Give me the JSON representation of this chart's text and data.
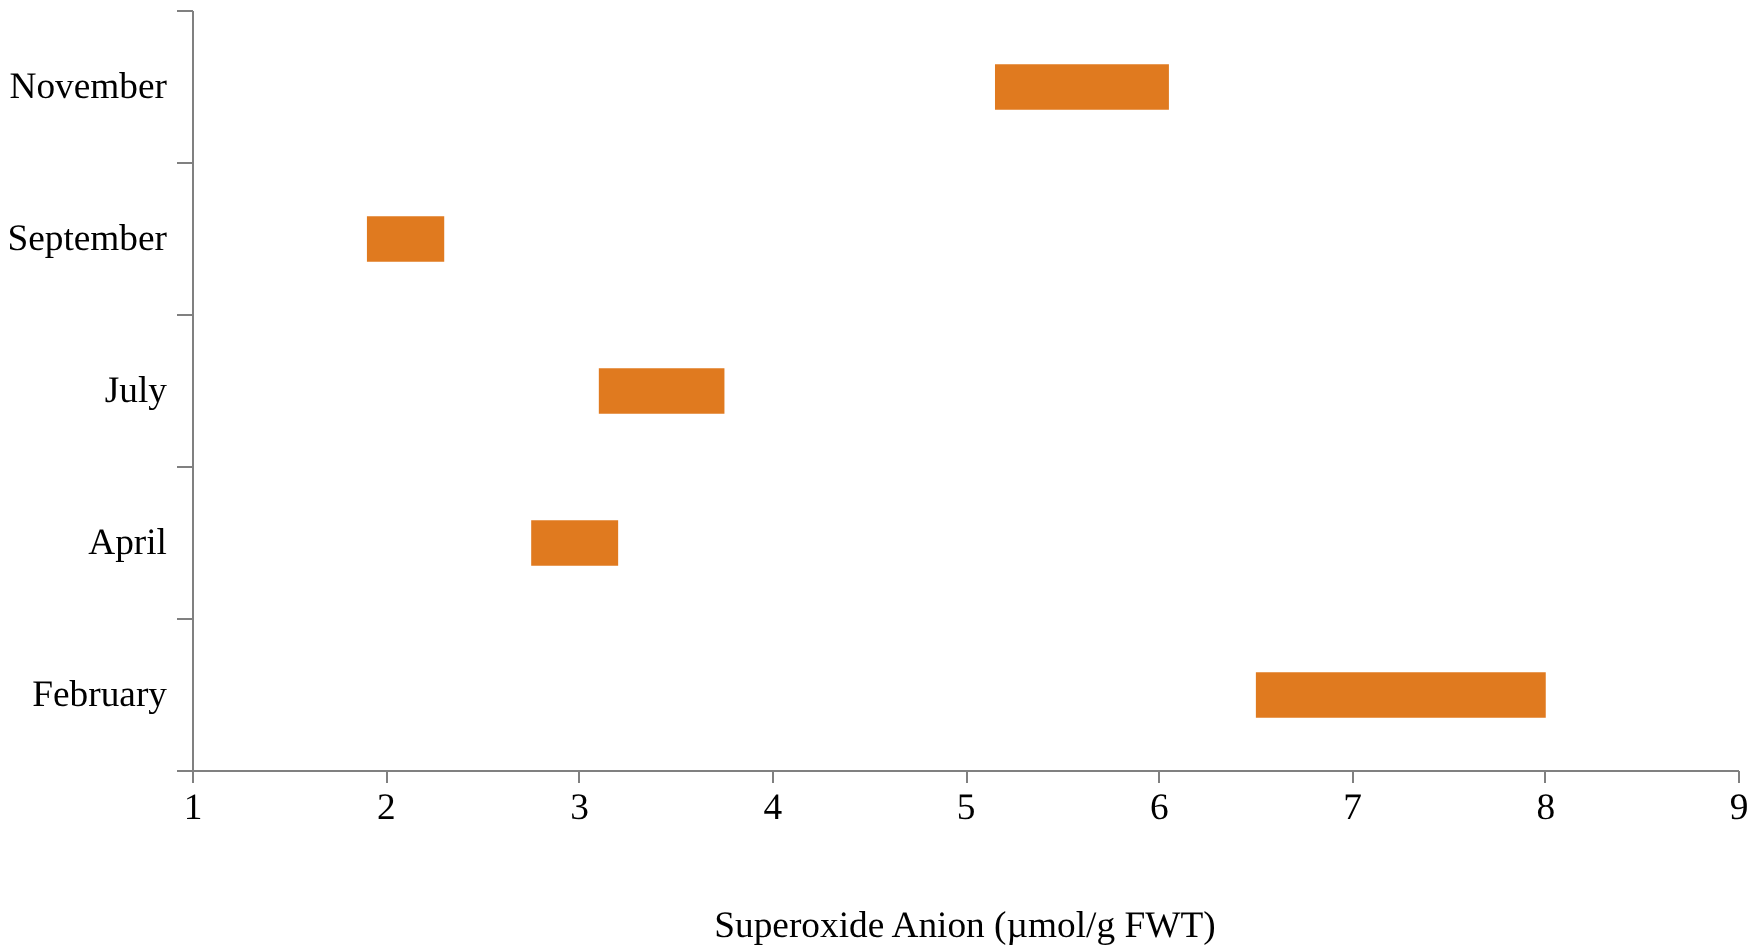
{
  "chart_data": {
    "type": "bar",
    "orientation": "horizontal",
    "xlabel": "Superoxide Anion (µmol/g FWT)",
    "categories": [
      "November",
      "September",
      "July",
      "April",
      "February"
    ],
    "base": [
      5.15,
      1.9,
      3.1,
      2.75,
      6.5
    ],
    "values": [
      0.9,
      0.4,
      0.65,
      0.45,
      1.5
    ],
    "color": "#e07a1f",
    "xlim": [
      1,
      9
    ],
    "xticks": [
      1,
      2,
      3,
      4,
      5,
      6,
      7,
      8,
      9
    ],
    "grid": false
  }
}
